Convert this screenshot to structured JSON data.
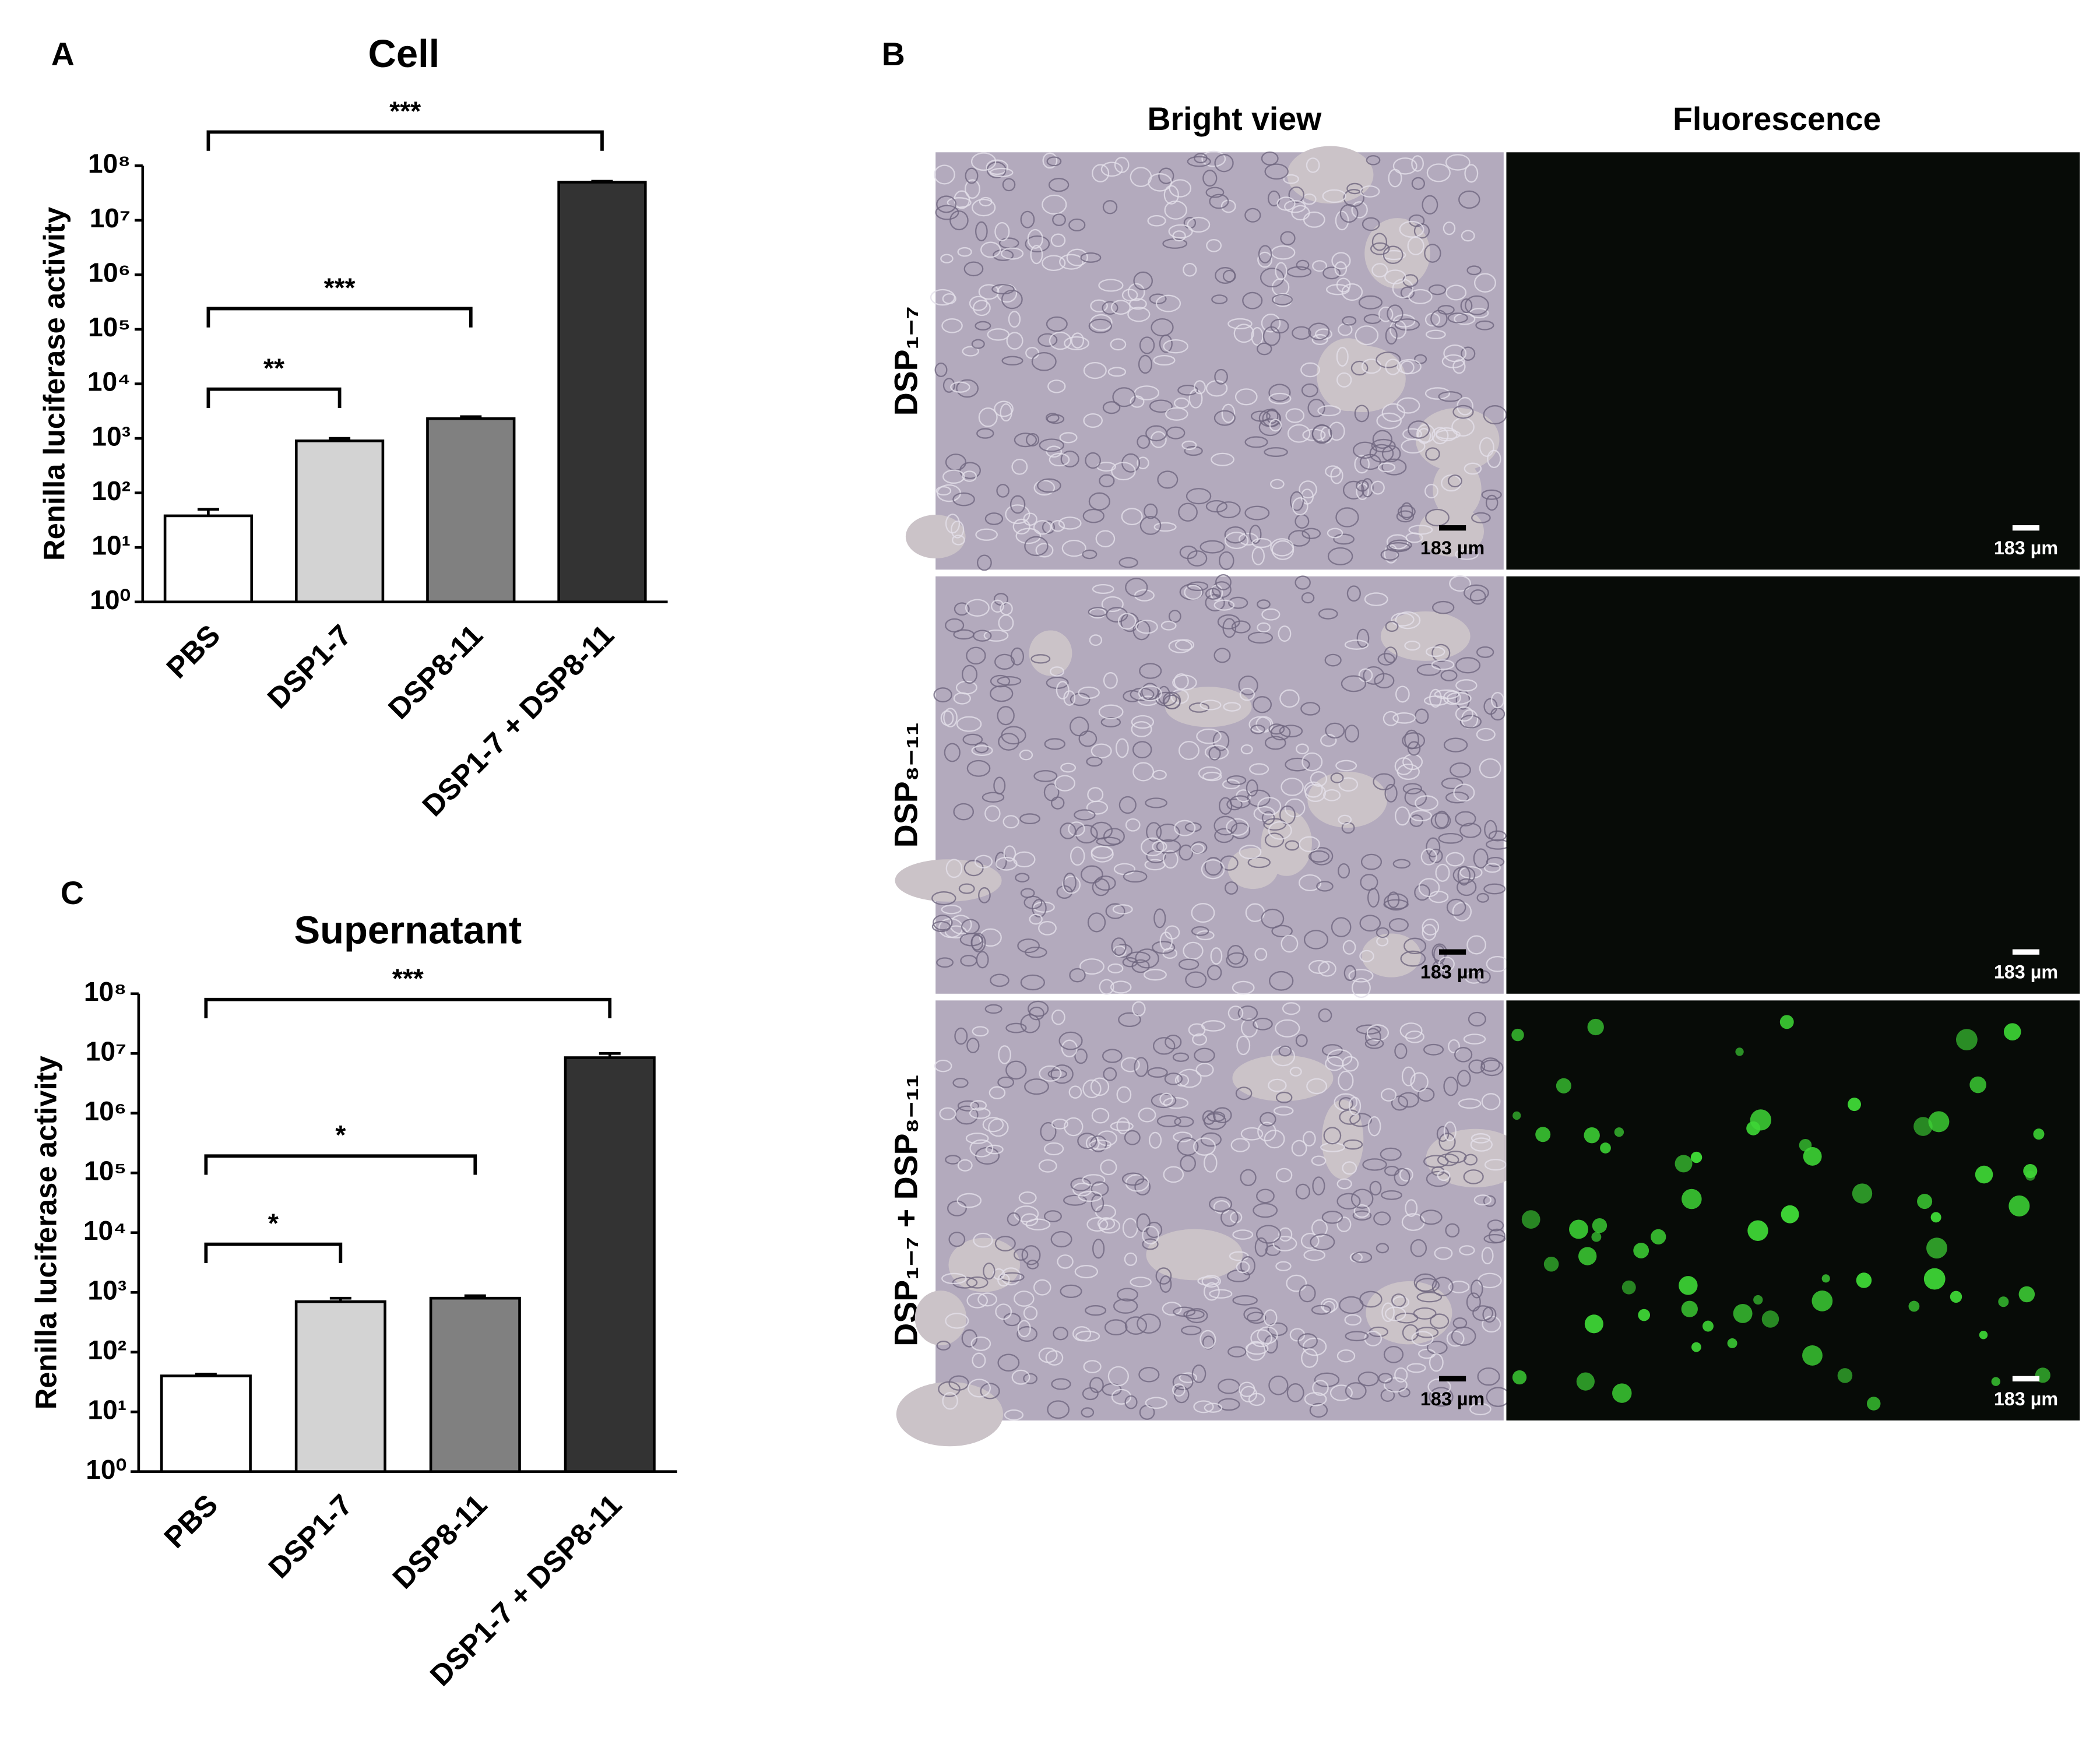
{
  "chart_data": [
    {
      "type": "bar",
      "panel": "A",
      "title": "Cell",
      "ylabel": "Renilla luciferase activity",
      "categories": [
        "PBS",
        "DSP1-7",
        "DSP8-11",
        "DSP1-7 + DSP8-11"
      ],
      "values": [
        38,
        900,
        2300,
        50000000
      ],
      "errors": [
        12,
        100,
        200,
        2000000
      ],
      "colors": [
        "#ffffff",
        "#d3d3d3",
        "#808080",
        "#333333"
      ],
      "log_scale": true,
      "ylim": [
        1,
        100000000
      ],
      "yticks": [
        {
          "value": 1,
          "label": "10⁰"
        },
        {
          "value": 10,
          "label": "10¹"
        },
        {
          "value": 100,
          "label": "10²"
        },
        {
          "value": 1000,
          "label": "10³"
        },
        {
          "value": 10000,
          "label": "10⁴"
        },
        {
          "value": 100000,
          "label": "10⁵"
        },
        {
          "value": 1000000,
          "label": "10⁶"
        },
        {
          "value": 10000000,
          "label": "10⁷"
        },
        {
          "value": 100000000,
          "label": "10⁸"
        }
      ],
      "brackets": [
        {
          "from": 0,
          "to": 1,
          "label": "**"
        },
        {
          "from": 0,
          "to": 2,
          "label": "***"
        },
        {
          "from": 0,
          "to": 3,
          "label": "***"
        }
      ]
    },
    {
      "type": "bar",
      "panel": "C",
      "title": "Supernatant",
      "ylabel": "Renilla luciferase activity",
      "categories": [
        "PBS",
        "DSP1-7",
        "DSP8-11",
        "DSP1-7 + DSP8-11"
      ],
      "values": [
        40,
        700,
        800,
        8500000
      ],
      "errors": [
        3,
        100,
        80,
        1500000
      ],
      "colors": [
        "#ffffff",
        "#d3d3d3",
        "#808080",
        "#333333"
      ],
      "log_scale": true,
      "ylim": [
        1,
        100000000
      ],
      "yticks": [
        {
          "value": 1,
          "label": "10⁰"
        },
        {
          "value": 10,
          "label": "10¹"
        },
        {
          "value": 100,
          "label": "10²"
        },
        {
          "value": 1000,
          "label": "10³"
        },
        {
          "value": 10000,
          "label": "10⁴"
        },
        {
          "value": 100000,
          "label": "10⁵"
        },
        {
          "value": 1000000,
          "label": "10⁶"
        },
        {
          "value": 10000000,
          "label": "10⁷"
        },
        {
          "value": 100000000,
          "label": "10⁸"
        }
      ],
      "brackets": [
        {
          "from": 0,
          "to": 1,
          "label": "*"
        },
        {
          "from": 0,
          "to": 2,
          "label": "*"
        },
        {
          "from": 0,
          "to": 3,
          "label": "***"
        }
      ]
    }
  ],
  "panel_b": {
    "label": "B",
    "columns": [
      "Bright view",
      "Fluorescence"
    ],
    "rows": [
      "DSP₁₋₇",
      "DSP₈₋₁₁",
      "DSP₁₋₇ + DSP₈₋₁₁"
    ],
    "scale_bar": "183 µm"
  }
}
